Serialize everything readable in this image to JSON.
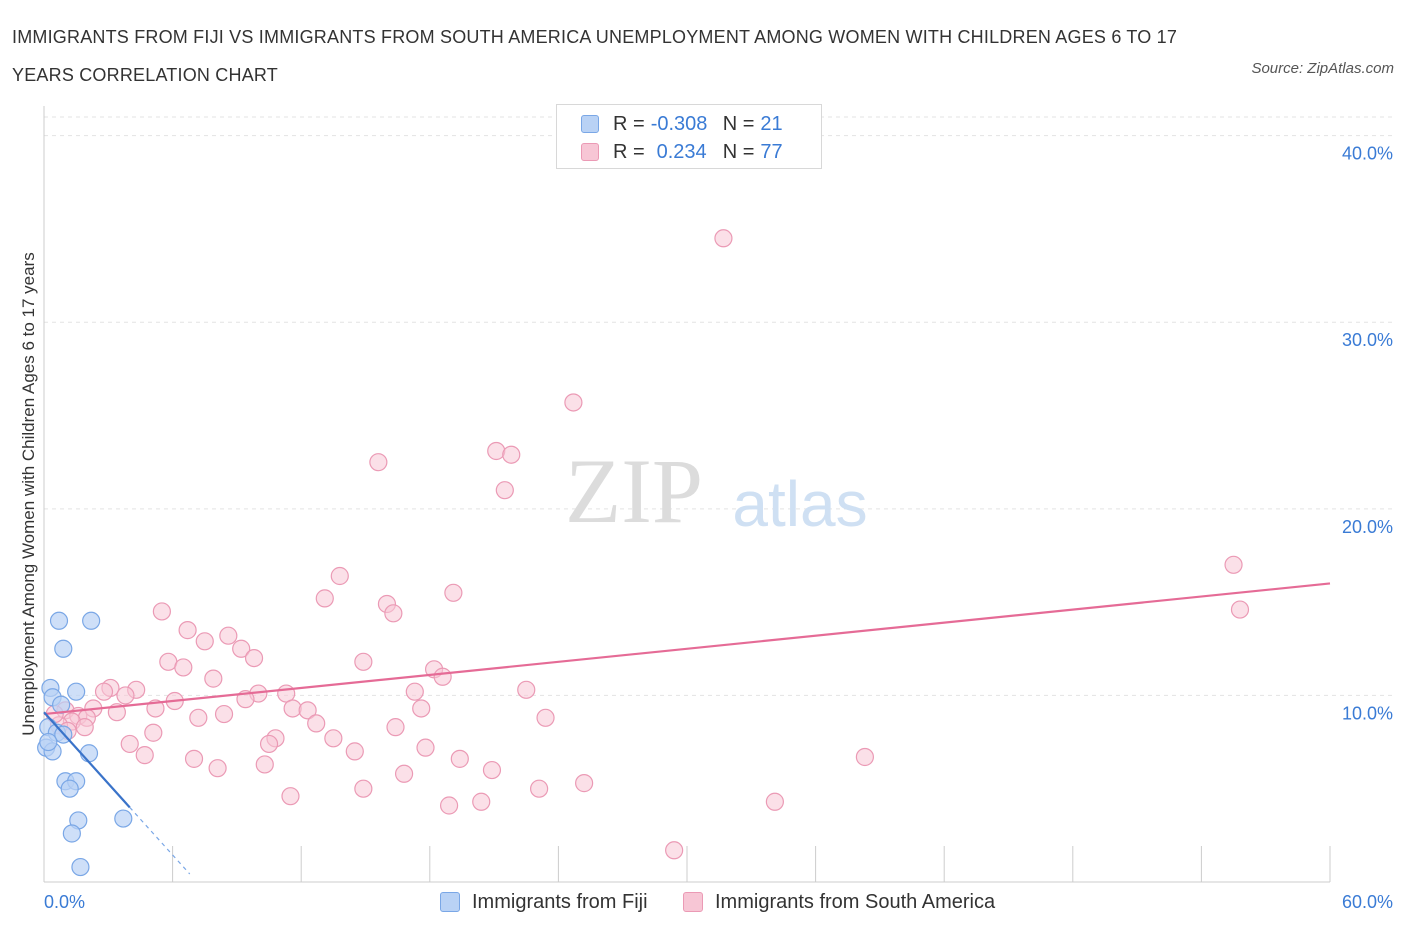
{
  "title": "IMMIGRANTS FROM FIJI VS IMMIGRANTS FROM SOUTH AMERICA UNEMPLOYMENT AMONG WOMEN WITH CHILDREN AGES 6 TO 17 YEARS CORRELATION CHART",
  "source": "Source: ZipAtlas.com",
  "watermark": {
    "zip": "ZIP",
    "atlas": "atlas"
  },
  "colors": {
    "fiji_fill": "#b9d2f5",
    "fiji_stroke": "#7aa7e6",
    "fiji_line": "#3a73c9",
    "sa_fill": "#f7c6d5",
    "sa_stroke": "#eb9ab5",
    "sa_line": "#e56b96",
    "axis_label": "#3a7bd5",
    "grid": "#e3e3e3"
  },
  "legend": {
    "rows": [
      {
        "r_label": "R =",
        "r_value": "-0.308",
        "n_label": "N =",
        "n_value": "21"
      },
      {
        "r_label": "R =",
        "r_value": "0.234",
        "n_label": "N =",
        "n_value": "77"
      }
    ]
  },
  "bottom_legend": {
    "fiji": "Immigrants from Fiji",
    "sa": "Immigrants from South America"
  },
  "chart_data": {
    "type": "scatter",
    "title": "IMMIGRANTS FROM FIJI VS IMMIGRANTS FROM SOUTH AMERICA UNEMPLOYMENT AMONG WOMEN WITH CHILDREN AGES 6 TO 17 YEARS CORRELATION CHART",
    "xlabel": "",
    "ylabel": "Unemployment Among Women with Children Ages 6 to 17 years",
    "xlim": [
      0,
      60
    ],
    "ylim": [
      0,
      40
    ],
    "x_tick_labels": [
      "0.0%",
      "60.0%"
    ],
    "y_ticks": [
      10,
      20,
      30,
      40
    ],
    "y_tick_labels": [
      "10.0%",
      "20.0%",
      "30.0%",
      "40.0%"
    ],
    "grid": true,
    "series": [
      {
        "name": "Immigrants from Fiji",
        "r": -0.308,
        "n": 21,
        "trend": {
          "x0": 0.0,
          "y0": 9.1,
          "x1": 4.0,
          "y1": 4.0,
          "dash_to_x": 6.8
        },
        "points": [
          [
            0.3,
            10.4
          ],
          [
            0.7,
            14.0
          ],
          [
            2.2,
            14.0
          ],
          [
            0.9,
            12.5
          ],
          [
            0.4,
            9.9
          ],
          [
            0.8,
            9.5
          ],
          [
            1.5,
            10.2
          ],
          [
            0.2,
            8.3
          ],
          [
            0.6,
            8.0
          ],
          [
            0.9,
            7.9
          ],
          [
            0.1,
            7.2
          ],
          [
            0.4,
            7.0
          ],
          [
            2.1,
            6.9
          ],
          [
            1.0,
            5.4
          ],
          [
            1.5,
            5.4
          ],
          [
            1.2,
            5.0
          ],
          [
            1.6,
            3.3
          ],
          [
            3.7,
            3.4
          ],
          [
            1.3,
            2.6
          ],
          [
            1.7,
            0.8
          ],
          [
            0.2,
            7.5
          ]
        ]
      },
      {
        "name": "Immigrants from South America",
        "r": 0.234,
        "n": 77,
        "trend": {
          "x0": 0.0,
          "y0": 9.0,
          "x1": 60.0,
          "y1": 16.0
        },
        "points": [
          [
            31.7,
            34.5
          ],
          [
            24.7,
            25.7
          ],
          [
            15.6,
            22.5
          ],
          [
            21.1,
            23.1
          ],
          [
            21.8,
            22.9
          ],
          [
            21.5,
            21.0
          ],
          [
            55.5,
            17.0
          ],
          [
            55.8,
            14.6
          ],
          [
            13.8,
            16.4
          ],
          [
            13.1,
            15.2
          ],
          [
            19.1,
            15.5
          ],
          [
            16.0,
            14.9
          ],
          [
            16.3,
            14.4
          ],
          [
            5.5,
            14.5
          ],
          [
            6.7,
            13.5
          ],
          [
            8.6,
            13.2
          ],
          [
            7.5,
            12.9
          ],
          [
            9.2,
            12.5
          ],
          [
            9.8,
            12.0
          ],
          [
            5.8,
            11.8
          ],
          [
            6.5,
            11.5
          ],
          [
            14.9,
            11.8
          ],
          [
            18.2,
            11.4
          ],
          [
            18.6,
            11.0
          ],
          [
            7.9,
            10.9
          ],
          [
            3.1,
            10.4
          ],
          [
            2.8,
            10.2
          ],
          [
            4.3,
            10.3
          ],
          [
            3.8,
            10.0
          ],
          [
            10.0,
            10.1
          ],
          [
            11.3,
            10.1
          ],
          [
            17.3,
            10.2
          ],
          [
            22.5,
            10.3
          ],
          [
            6.1,
            9.7
          ],
          [
            9.4,
            9.8
          ],
          [
            2.3,
            9.3
          ],
          [
            3.4,
            9.1
          ],
          [
            5.2,
            9.3
          ],
          [
            8.4,
            9.0
          ],
          [
            11.6,
            9.3
          ],
          [
            12.3,
            9.2
          ],
          [
            17.6,
            9.3
          ],
          [
            1.0,
            9.2
          ],
          [
            1.6,
            8.9
          ],
          [
            2.0,
            8.8
          ],
          [
            1.3,
            8.6
          ],
          [
            0.7,
            8.4
          ],
          [
            1.9,
            8.3
          ],
          [
            1.1,
            8.1
          ],
          [
            12.7,
            8.5
          ],
          [
            16.4,
            8.3
          ],
          [
            23.4,
            8.8
          ],
          [
            7.2,
            8.8
          ],
          [
            5.1,
            8.0
          ],
          [
            10.8,
            7.7
          ],
          [
            13.5,
            7.7
          ],
          [
            4.0,
            7.4
          ],
          [
            10.5,
            7.4
          ],
          [
            14.5,
            7.0
          ],
          [
            17.8,
            7.2
          ],
          [
            4.7,
            6.8
          ],
          [
            7.0,
            6.6
          ],
          [
            8.1,
            6.1
          ],
          [
            10.3,
            6.3
          ],
          [
            19.4,
            6.6
          ],
          [
            20.9,
            6.0
          ],
          [
            38.3,
            6.7
          ],
          [
            16.8,
            5.8
          ],
          [
            25.2,
            5.3
          ],
          [
            14.9,
            5.0
          ],
          [
            23.1,
            5.0
          ],
          [
            11.5,
            4.6
          ],
          [
            18.9,
            4.1
          ],
          [
            20.4,
            4.3
          ],
          [
            34.1,
            4.3
          ],
          [
            29.4,
            1.7
          ],
          [
            0.5,
            9.0
          ]
        ]
      }
    ]
  }
}
